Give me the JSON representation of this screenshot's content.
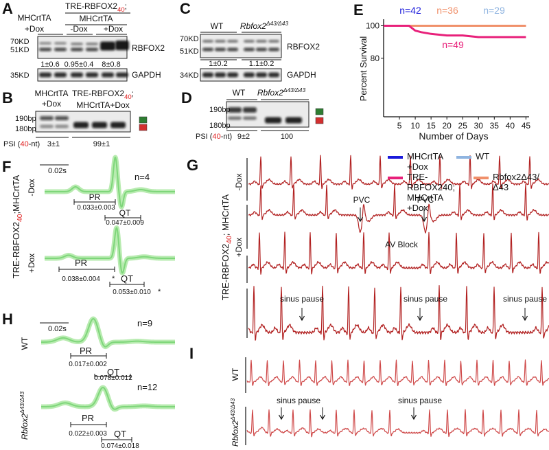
{
  "panel_a": {
    "letter": "A",
    "lane1_top": "MHCrtTA",
    "lane1_bottom": "+Dox",
    "group_title": "TRE-RBFOX2",
    "group_subscript": "40",
    "group_separator": ";",
    "group_bottom": "MHCrtTA",
    "lane2": "-Dox",
    "lane3": "+Dox",
    "marker_70": "70KD",
    "marker_51": "51KD",
    "marker_35": "35KD",
    "protein": "RBFOX2",
    "loading": "GAPDH",
    "quantification": [
      "1±0.6",
      "0.95±0.4",
      "8±0.8"
    ]
  },
  "panel_b": {
    "letter": "B",
    "group1_top": "MHCrtTA",
    "group1_bottom": "+Dox",
    "group2_title": "TRE-RBFOX2",
    "group2_subscript": "40",
    "group2_separator": ";",
    "group2_bottom": "MHCrtTA+Dox",
    "marker_190": "190bp",
    "marker_180": "180bp",
    "psi_prefix": "PSI (",
    "psi_exon": "40",
    "psi_suffix": "-nt)",
    "psi": [
      "3±1",
      "99±1"
    ]
  },
  "panel_c": {
    "letter": "C",
    "group1": "WT",
    "group2": "Rbfox2",
    "group2_superscript": "Δ43/Δ43",
    "marker_70": "70KD",
    "marker_51": "51KD",
    "marker_34": "34KD",
    "protein": "RBFOX2",
    "loading": "GAPDH",
    "quantification": [
      "1±0.2",
      "1.1±0.2"
    ]
  },
  "panel_d": {
    "letter": "D",
    "group1": "WT",
    "group2": "Rbfox2",
    "group2_superscript": "Δ43/Δ43",
    "marker_190": "190bp",
    "marker_180": "180bp",
    "psi_prefix": "PSI (",
    "psi_exon": "40",
    "psi_suffix": "-nt)",
    "psi": [
      "9±2",
      "100"
    ]
  },
  "panel_e": {
    "letter": "E"
  },
  "panel_f": {
    "letter": "F",
    "scale": "0.02s",
    "genotype": "TRE-RBFOX2",
    "genotype_subscript": "40",
    "genotype_suffix": ";MHCrtTA",
    "traces": [
      {
        "condition": "-Dox",
        "n": "n=4",
        "pr": "PR",
        "pr_value": "0.033±0.003",
        "qt": "QT",
        "qt_value": "0.047±0.009"
      },
      {
        "condition": "+Dox",
        "pr": "PR",
        "pr_value": "0.038±0.004",
        "pr_mark": "*",
        "qt": "QT",
        "qt_value": "0.053±0.010",
        "qt_mark": "*"
      }
    ]
  },
  "panel_g": {
    "letter": "G",
    "genotype": "TRE-RBFOX2",
    "genotype_subscript": "40",
    "genotype_suffix": "; MHCrtTA",
    "conditions": [
      "-Dox",
      "+Dox"
    ],
    "pvc": [
      "PVC",
      "PVC"
    ],
    "av_block": "AV Block",
    "sinus_pause": [
      "sinus pause",
      "sinus pause",
      "sinus pause"
    ]
  },
  "panel_h": {
    "letter": "H",
    "scale": "0.02s",
    "traces": [
      {
        "genotype": "WT",
        "n": "n=9",
        "pr": "PR",
        "pr_value": "0.017±0.002",
        "qt": "QT",
        "qt_value": "0.078±0.012"
      },
      {
        "genotype": "Rbfox2",
        "genotype_superscript": "Δ43/Δ43",
        "n": "n=12",
        "pr": "PR",
        "pr_value": "0.022±0.003",
        "qt": "QT",
        "qt_value": "0.074±0.018"
      }
    ]
  },
  "panel_i": {
    "letter": "I",
    "wt": "WT",
    "mutant": "Rbfox2",
    "mutant_superscript": "Δ43/Δ43",
    "sinus_pause": [
      "sinus pause",
      "sinus pause"
    ]
  },
  "chart_data": {
    "type": "line",
    "x_label": "Number of Days",
    "y_label": "Percent Survival",
    "x": [
      0,
      5,
      8,
      10,
      12,
      15,
      20,
      25,
      30,
      37,
      45
    ],
    "series": [
      {
        "name": "MHCrtTA +Dox",
        "color": "#1a1adb",
        "values": [
          100,
          100,
          100,
          100,
          100,
          100,
          100,
          100,
          100,
          100,
          100
        ]
      },
      {
        "name": "TRE-RBFOX240; MHCrtTA +Dox",
        "color": "#e8207a",
        "values": [
          100,
          100,
          100,
          97,
          96,
          95,
          94,
          94,
          93,
          93,
          93
        ]
      },
      {
        "name": "WT",
        "color": "#8fb4e0",
        "values": [
          100,
          100,
          100,
          100,
          100,
          100,
          100,
          100,
          100,
          100,
          100
        ]
      },
      {
        "name": "Rbfox2Δ43/Δ43",
        "color": "#f0906a",
        "values": [
          100,
          100,
          100,
          100,
          100,
          100,
          100,
          100,
          100,
          100,
          100
        ]
      }
    ],
    "annotations": [
      {
        "text": "n=42",
        "color": "#1a1adb"
      },
      {
        "text": "n=36",
        "color": "#f0906a"
      },
      {
        "text": "n=29",
        "color": "#8fb4e0"
      },
      {
        "text": "n=49",
        "color": "#e8207a"
      }
    ],
    "xlim": [
      0,
      46
    ],
    "ylim": [
      44,
      104
    ],
    "xticks": [
      5,
      10,
      15,
      20,
      25,
      30,
      35,
      40,
      45
    ],
    "yticks": [
      80,
      100
    ]
  }
}
